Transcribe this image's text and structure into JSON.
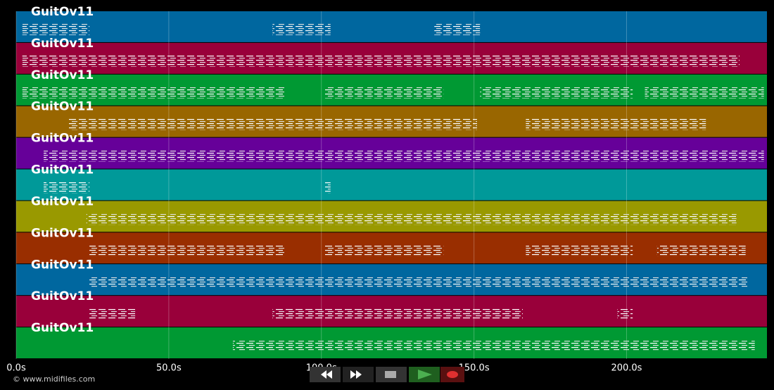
{
  "chart_data": {
    "type": "pianoroll",
    "xlim": [
      0,
      246
    ],
    "xticks": [
      {
        "value": 0,
        "label": "0.0s"
      },
      {
        "value": 50,
        "label": "50.0s"
      },
      {
        "value": 100,
        "label": "100.0s"
      },
      {
        "value": 150,
        "label": "150.0s"
      },
      {
        "value": 200,
        "label": "200.0s"
      }
    ],
    "grid": true,
    "tracks": [
      {
        "name": "GuitOv11",
        "color": "#00679f",
        "segments": [
          [
            2,
            24
          ],
          [
            84,
            103
          ],
          [
            137,
            152
          ]
        ]
      },
      {
        "name": "GuitOv11",
        "color": "#99003a",
        "segments": [
          [
            2,
            237
          ]
        ]
      },
      {
        "name": "GuitOv11",
        "color": "#009933",
        "segments": [
          [
            2,
            88
          ],
          [
            101,
            140
          ],
          [
            152,
            202
          ],
          [
            206,
            245
          ]
        ]
      },
      {
        "name": "GuitOv11",
        "color": "#996600",
        "segments": [
          [
            17,
            151
          ],
          [
            167,
            226
          ]
        ]
      },
      {
        "name": "GuitOv11",
        "color": "#660099",
        "segments": [
          [
            9,
            245
          ]
        ]
      },
      {
        "name": "GuitOv11",
        "color": "#009999",
        "segments": [
          [
            9,
            24
          ],
          [
            101,
            103
          ]
        ]
      },
      {
        "name": "GuitOv11",
        "color": "#999900",
        "segments": [
          [
            23,
            236
          ]
        ]
      },
      {
        "name": "GuitOv11",
        "color": "#992e00",
        "segments": [
          [
            24,
            88
          ],
          [
            101,
            140
          ],
          [
            167,
            202
          ],
          [
            210,
            239
          ]
        ]
      },
      {
        "name": "GuitOv11",
        "color": "#00679f",
        "segments": [
          [
            24,
            240
          ]
        ]
      },
      {
        "name": "GuitOv11",
        "color": "#99003a",
        "segments": [
          [
            24,
            39
          ],
          [
            84,
            166
          ],
          [
            197,
            202
          ]
        ]
      },
      {
        "name": "GuitOv11",
        "color": "#009933",
        "segments": [
          [
            71,
            242
          ]
        ]
      }
    ]
  },
  "footer": {
    "credit": "© www.midifiles.com"
  }
}
